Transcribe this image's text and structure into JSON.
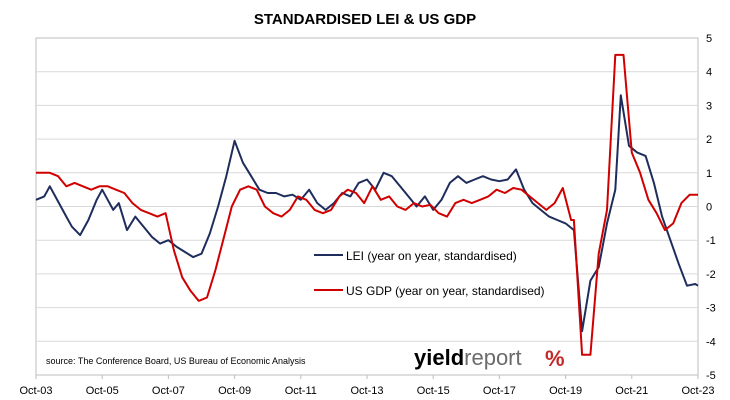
{
  "chart_data": {
    "type": "line",
    "title": "STANDARDISED LEI & US GDP",
    "xlabel": "",
    "ylabel": "",
    "x_ticks": [
      "Oct-03",
      "Oct-05",
      "Oct-07",
      "Oct-09",
      "Oct-11",
      "Oct-13",
      "Oct-15",
      "Oct-17",
      "Oct-19",
      "Oct-21",
      "Oct-23"
    ],
    "xlim": [
      "2003-10",
      "2023-10"
    ],
    "ylim": [
      -5,
      5
    ],
    "y_ticks": [
      5,
      4,
      3,
      2,
      1,
      0,
      -1,
      -2,
      -3,
      -4,
      -5
    ],
    "grid": "horizontal",
    "legend_position": "center",
    "source": "source: The Conference Board, US Bureau of Economic Analysis",
    "brand": {
      "left": "yield",
      "mid": "report",
      "symbol": "%",
      "green": "#2e7d32",
      "red": "#c62828"
    },
    "series": [
      {
        "name": "LEI (year on year, standardised)",
        "color": "#1f2d5c",
        "points": [
          [
            "2003-10",
            0.2
          ],
          [
            "2004-01",
            0.3
          ],
          [
            "2004-03",
            0.6
          ],
          [
            "2004-05",
            0.3
          ],
          [
            "2004-07",
            0.0
          ],
          [
            "2004-09",
            -0.3
          ],
          [
            "2004-11",
            -0.6
          ],
          [
            "2005-02",
            -0.85
          ],
          [
            "2005-05",
            -0.4
          ],
          [
            "2005-08",
            0.2
          ],
          [
            "2005-10",
            0.5
          ],
          [
            "2005-12",
            0.2
          ],
          [
            "2006-02",
            -0.1
          ],
          [
            "2006-04",
            0.1
          ],
          [
            "2006-07",
            -0.7
          ],
          [
            "2006-10",
            -0.3
          ],
          [
            "2007-01",
            -0.6
          ],
          [
            "2007-04",
            -0.9
          ],
          [
            "2007-07",
            -1.1
          ],
          [
            "2007-10",
            -1.0
          ],
          [
            "2008-01",
            -1.2
          ],
          [
            "2008-04",
            -1.35
          ],
          [
            "2008-07",
            -1.5
          ],
          [
            "2008-10",
            -1.4
          ],
          [
            "2009-01",
            -0.8
          ],
          [
            "2009-04",
            0.0
          ],
          [
            "2009-07",
            0.9
          ],
          [
            "2009-10",
            1.95
          ],
          [
            "2010-01",
            1.3
          ],
          [
            "2010-04",
            0.9
          ],
          [
            "2010-07",
            0.5
          ],
          [
            "2010-10",
            0.4
          ],
          [
            "2011-01",
            0.4
          ],
          [
            "2011-04",
            0.3
          ],
          [
            "2011-07",
            0.35
          ],
          [
            "2011-10",
            0.2
          ],
          [
            "2012-01",
            0.5
          ],
          [
            "2012-04",
            0.1
          ],
          [
            "2012-07",
            -0.1
          ],
          [
            "2012-10",
            0.1
          ],
          [
            "2013-01",
            0.4
          ],
          [
            "2013-04",
            0.3
          ],
          [
            "2013-07",
            0.7
          ],
          [
            "2013-10",
            0.8
          ],
          [
            "2014-01",
            0.5
          ],
          [
            "2014-04",
            1.0
          ],
          [
            "2014-07",
            0.9
          ],
          [
            "2014-10",
            0.6
          ],
          [
            "2015-01",
            0.3
          ],
          [
            "2015-04",
            0.0
          ],
          [
            "2015-07",
            0.3
          ],
          [
            "2015-10",
            -0.1
          ],
          [
            "2016-01",
            0.2
          ],
          [
            "2016-04",
            0.7
          ],
          [
            "2016-07",
            0.9
          ],
          [
            "2016-10",
            0.7
          ],
          [
            "2017-01",
            0.8
          ],
          [
            "2017-04",
            0.9
          ],
          [
            "2017-07",
            0.8
          ],
          [
            "2017-10",
            0.75
          ],
          [
            "2018-01",
            0.8
          ],
          [
            "2018-04",
            1.1
          ],
          [
            "2018-07",
            0.5
          ],
          [
            "2018-10",
            0.1
          ],
          [
            "2019-01",
            -0.1
          ],
          [
            "2019-04",
            -0.3
          ],
          [
            "2019-07",
            -0.4
          ],
          [
            "2019-10",
            -0.5
          ],
          [
            "2020-01",
            -0.7
          ],
          [
            "2020-04",
            -3.7
          ],
          [
            "2020-07",
            -2.2
          ],
          [
            "2020-10",
            -1.8
          ],
          [
            "2021-01",
            -0.5
          ],
          [
            "2021-04",
            0.5
          ],
          [
            "2021-06",
            3.3
          ],
          [
            "2021-09",
            1.8
          ],
          [
            "2021-12",
            1.6
          ],
          [
            "2022-03",
            1.5
          ],
          [
            "2022-06",
            0.7
          ],
          [
            "2022-09",
            -0.3
          ],
          [
            "2022-12",
            -1.0
          ],
          [
            "2023-03",
            -1.7
          ],
          [
            "2023-06",
            -2.35
          ],
          [
            "2023-09",
            -2.3
          ],
          [
            "2023-10",
            -2.35
          ]
        ]
      },
      {
        "name": "US GDP (year on year, standardised)",
        "color": "#d00000",
        "points": [
          [
            "2003-10",
            1.0
          ],
          [
            "2004-03",
            1.0
          ],
          [
            "2004-06",
            0.9
          ],
          [
            "2004-09",
            0.6
          ],
          [
            "2004-12",
            0.7
          ],
          [
            "2005-03",
            0.6
          ],
          [
            "2005-06",
            0.5
          ],
          [
            "2005-09",
            0.6
          ],
          [
            "2005-12",
            0.6
          ],
          [
            "2006-03",
            0.5
          ],
          [
            "2006-06",
            0.4
          ],
          [
            "2006-09",
            0.1
          ],
          [
            "2006-12",
            -0.1
          ],
          [
            "2007-03",
            -0.2
          ],
          [
            "2007-06",
            -0.3
          ],
          [
            "2007-09",
            -0.2
          ],
          [
            "2007-12",
            -1.3
          ],
          [
            "2008-03",
            -2.1
          ],
          [
            "2008-06",
            -2.5
          ],
          [
            "2008-09",
            -2.8
          ],
          [
            "2008-12",
            -2.7
          ],
          [
            "2009-03",
            -1.9
          ],
          [
            "2009-06",
            -0.95
          ],
          [
            "2009-09",
            0.0
          ],
          [
            "2009-12",
            0.5
          ],
          [
            "2010-03",
            0.6
          ],
          [
            "2010-06",
            0.5
          ],
          [
            "2010-09",
            0.0
          ],
          [
            "2010-12",
            -0.2
          ],
          [
            "2011-03",
            -0.3
          ],
          [
            "2011-06",
            -0.1
          ],
          [
            "2011-09",
            0.3
          ],
          [
            "2011-12",
            0.2
          ],
          [
            "2012-03",
            -0.1
          ],
          [
            "2012-06",
            -0.2
          ],
          [
            "2012-09",
            -0.1
          ],
          [
            "2012-12",
            0.3
          ],
          [
            "2013-03",
            0.5
          ],
          [
            "2013-06",
            0.4
          ],
          [
            "2013-09",
            0.1
          ],
          [
            "2013-12",
            0.6
          ],
          [
            "2014-03",
            0.2
          ],
          [
            "2014-06",
            0.3
          ],
          [
            "2014-09",
            0.0
          ],
          [
            "2014-12",
            -0.1
          ],
          [
            "2015-03",
            0.1
          ],
          [
            "2015-06",
            0.0
          ],
          [
            "2015-09",
            0.05
          ],
          [
            "2015-12",
            -0.2
          ],
          [
            "2016-03",
            -0.3
          ],
          [
            "2016-06",
            0.1
          ],
          [
            "2016-09",
            0.2
          ],
          [
            "2016-12",
            0.1
          ],
          [
            "2017-03",
            0.2
          ],
          [
            "2017-06",
            0.3
          ],
          [
            "2017-09",
            0.5
          ],
          [
            "2017-12",
            0.4
          ],
          [
            "2018-03",
            0.55
          ],
          [
            "2018-06",
            0.5
          ],
          [
            "2018-09",
            0.3
          ],
          [
            "2018-12",
            0.1
          ],
          [
            "2019-03",
            -0.1
          ],
          [
            "2019-06",
            0.1
          ],
          [
            "2019-09",
            0.55
          ],
          [
            "2019-12",
            -0.4
          ],
          [
            "2020-01",
            -0.4
          ],
          [
            "2020-04",
            -4.4
          ],
          [
            "2020-07",
            -4.4
          ],
          [
            "2020-10",
            -1.4
          ],
          [
            "2021-01",
            -0.1
          ],
          [
            "2021-04",
            4.5
          ],
          [
            "2021-07",
            4.5
          ],
          [
            "2021-10",
            1.6
          ],
          [
            "2022-01",
            1.0
          ],
          [
            "2022-04",
            0.2
          ],
          [
            "2022-07",
            -0.2
          ],
          [
            "2022-10",
            -0.7
          ],
          [
            "2023-01",
            -0.5
          ],
          [
            "2023-04",
            0.1
          ],
          [
            "2023-07",
            0.35
          ],
          [
            "2023-10",
            0.35
          ]
        ]
      }
    ]
  }
}
